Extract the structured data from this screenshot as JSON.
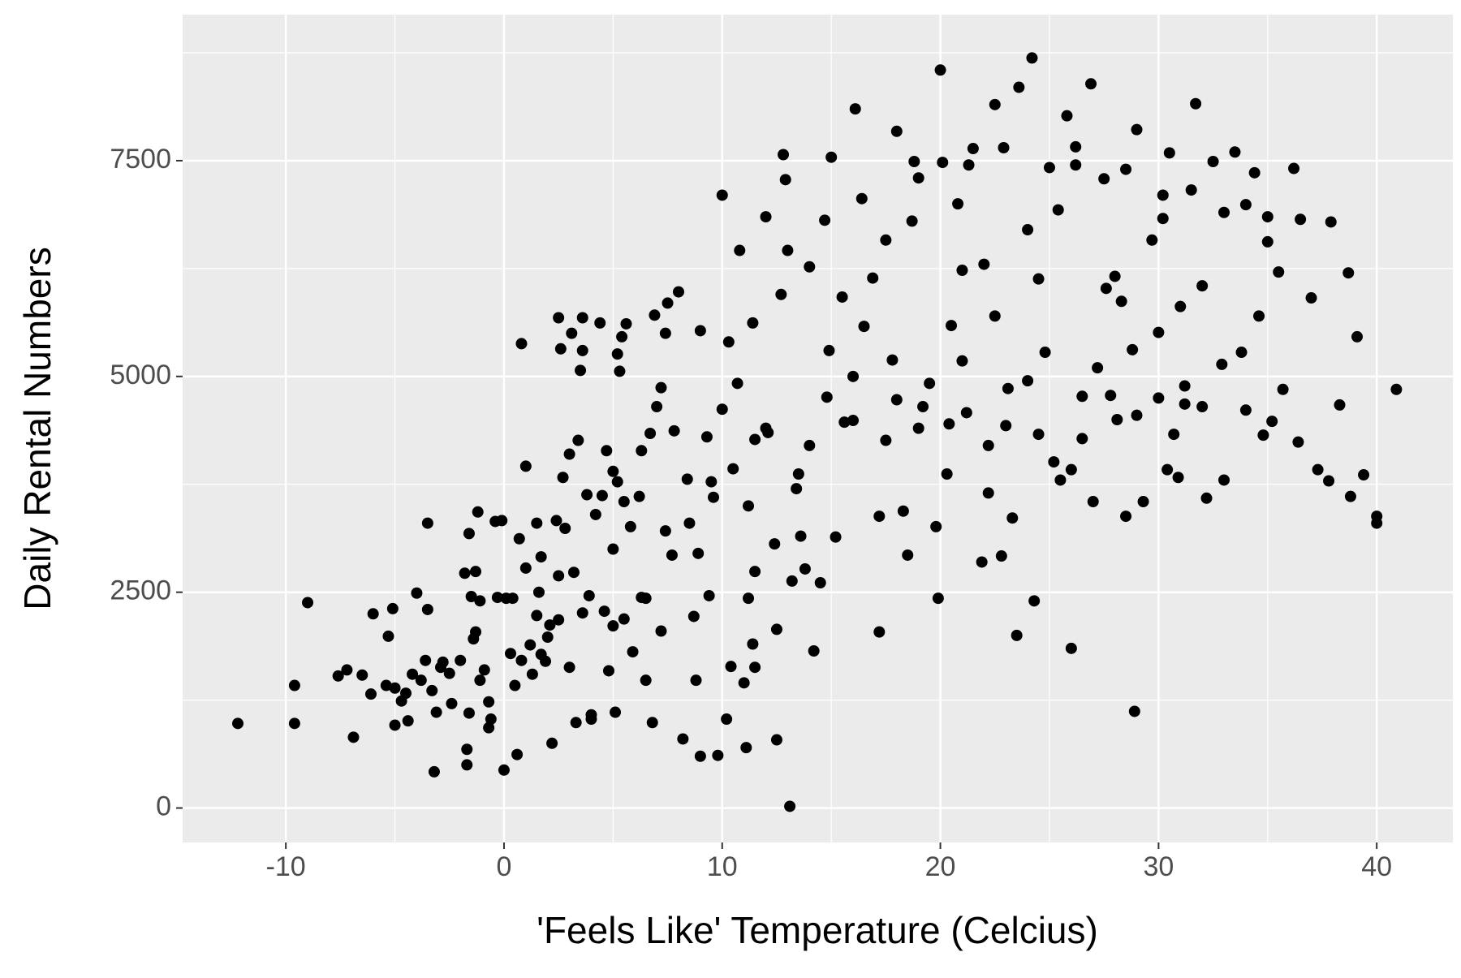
{
  "chart_data": {
    "type": "scatter",
    "x_label": "'Feels Like' Temperature (Celcius)",
    "y_label": "Daily Rental Numbers",
    "color": "#000000",
    "grid": true,
    "xlim": [
      -14.73,
      43.49
    ],
    "ylim": [
      -399,
      9192
    ],
    "xticks": [
      -10,
      0,
      10,
      20,
      30,
      40
    ],
    "yticks": [
      0,
      2500,
      5000,
      7500
    ],
    "x": [
      -12.2,
      -9.6,
      -9.6,
      -9,
      -7.6,
      -7.2,
      -6.9,
      -6.5,
      -6.1,
      -6,
      -5.4,
      -5.3,
      -5.1,
      -5,
      -5,
      -4.7,
      -4.5,
      -4.4,
      -4.2,
      -4,
      -3.8,
      -3.6,
      -3.5,
      -3.5,
      -3.3,
      -3.2,
      -3.1,
      -2.9,
      -2.8,
      -2.5,
      -2.4,
      -2,
      -1.8,
      -1.7,
      -1.7,
      -1.6,
      -1.6,
      -1.5,
      -1.4,
      -1.3,
      -1.3,
      -1.2,
      -1.1,
      -1.1,
      -0.9,
      -0.7,
      -0.7,
      -0.6,
      -0.4,
      -0.3,
      -0.1,
      0,
      0.1,
      0.3,
      0.4,
      0.5,
      0.6,
      0.7,
      0.8,
      0.8,
      1,
      1,
      1.2,
      1.3,
      1.5,
      1.5,
      1.6,
      1.7,
      1.7,
      2,
      2.1,
      2.2,
      2.4,
      2.5,
      2.5,
      2.6,
      2.7,
      2.8,
      3,
      3,
      3.1,
      3.2,
      3.3,
      3.4,
      3.5,
      3.6,
      3.6,
      3.8,
      3.9,
      4,
      4,
      4.2,
      4.4,
      4.5,
      4.7,
      4.8,
      5,
      5,
      5,
      5.1,
      5.2,
      5.2,
      5.3,
      5.4,
      5.5,
      5.5,
      5.6,
      5.8,
      5.9,
      6.2,
      6.3,
      6.5,
      6.5,
      6.7,
      6.8,
      6.9,
      7,
      7.2,
      7.4,
      7.4,
      7.5,
      7.7,
      7.8,
      8,
      8.2,
      8.4,
      8.7,
      8.8,
      8.9,
      9,
      9,
      9.3,
      9.4,
      9.5,
      9.8,
      10,
      10,
      10.2,
      10.3,
      10.4,
      10.7,
      10.8,
      11,
      11.1,
      11.2,
      11.2,
      11.4,
      11.4,
      11.5,
      11.5,
      12,
      12.1,
      12.5,
      12.5,
      12.7,
      12.8,
      12.9,
      13,
      13.1,
      13.2,
      13.5,
      13.8,
      14,
      14.2,
      14.5,
      14.7,
      14.9,
      15,
      15.2,
      15.5,
      16,
      16.1,
      16.4,
      16.9,
      17.2,
      17.2,
      17.5,
      17.8,
      18,
      18.3,
      18.5,
      18.7,
      19,
      19.2,
      19.5,
      19.8,
      19.9,
      20,
      20.1,
      20.3,
      20.5,
      20.8,
      21,
      21.2,
      21.5,
      21.9,
      22,
      22.2,
      22.5,
      22.8,
      23,
      23.3,
      23.5,
      23.6,
      24,
      24.2,
      24.3,
      24.5,
      24.8,
      25.2,
      25.5,
      25.8,
      26,
      26.2,
      26.5,
      26.9,
      27,
      27.2,
      27.6,
      28,
      28.5,
      28.8,
      28.9,
      29,
      29.3,
      29.7,
      30,
      30.2,
      30.5,
      30.7,
      30.9,
      31.2,
      31.5,
      31.7,
      32,
      32.2,
      32.5,
      33,
      33.5,
      34,
      34.4,
      34.8,
      35,
      35.2,
      35.5,
      35.7,
      36.2,
      36.4,
      37,
      37.3,
      37.8,
      37.9,
      38.3,
      38.7,
      38.8,
      39.1,
      39.4,
      40,
      40,
      40.9,
      21,
      22.5,
      24,
      25,
      26.2,
      27.5,
      28.5,
      29,
      30,
      31,
      32,
      33.8,
      34,
      26.5,
      27.8,
      28.1,
      30.4,
      31.2,
      23.1,
      22.2,
      20.4,
      19,
      18,
      17.5,
      16,
      15.6,
      14.8,
      14,
      13.4,
      12.4,
      12,
      11.5,
      10.5,
      9.6,
      8.5,
      7.2,
      6.3,
      4.6,
      3.6,
      2.5,
      1.9,
      13.6,
      16.5,
      18.8,
      21.3,
      22.9,
      25.4,
      30.2,
      33,
      35,
      36.5,
      24.5,
      26,
      28.3,
      32.9,
      34.6
    ],
    "values": [
      980,
      1420,
      980,
      2380,
      1530,
      1600,
      820,
      1540,
      1320,
      2250,
      1420,
      1990,
      2310,
      1390,
      960,
      1240,
      1330,
      1010,
      1550,
      2490,
      1480,
      1710,
      2300,
      3300,
      1360,
      420,
      1110,
      1630,
      1690,
      1560,
      1210,
      1710,
      2720,
      680,
      500,
      3180,
      1100,
      2450,
      1960,
      2740,
      2040,
      3430,
      2400,
      1480,
      1600,
      930,
      1230,
      1030,
      3320,
      2440,
      3330,
      440,
      2430,
      1790,
      2430,
      1420,
      620,
      3120,
      5380,
      1710,
      3960,
      2780,
      1890,
      1550,
      2230,
      3300,
      2500,
      1780,
      2910,
      1980,
      2120,
      750,
      3330,
      2690,
      5680,
      5320,
      3830,
      3240,
      4100,
      1630,
      5500,
      2730,
      990,
      4260,
      5070,
      5680,
      5300,
      3630,
      2460,
      1030,
      1080,
      3400,
      5620,
      3620,
      4140,
      1590,
      2110,
      3000,
      3900,
      1110,
      5260,
      3780,
      5060,
      5460,
      2190,
      3550,
      5610,
      3260,
      1810,
      3610,
      4140,
      1480,
      2430,
      4340,
      990,
      5710,
      4650,
      4870,
      3210,
      5500,
      5850,
      2930,
      4370,
      5980,
      800,
      3810,
      2220,
      1480,
      2950,
      600,
      5530,
      4300,
      2460,
      3780,
      610,
      7100,
      4620,
      1030,
      5400,
      1640,
      4920,
      6460,
      1450,
      700,
      3500,
      2430,
      5620,
      1900,
      2740,
      1630,
      6850,
      4350,
      790,
      2070,
      5950,
      7570,
      7280,
      6460,
      20,
      2630,
      3870,
      2770,
      6270,
      1820,
      2610,
      6810,
      5300,
      7540,
      3140,
      5920,
      4490,
      8100,
      7060,
      6140,
      3380,
      2040,
      6580,
      5190,
      7840,
      3440,
      2930,
      6800,
      7300,
      4650,
      4920,
      3260,
      2430,
      8550,
      7480,
      3870,
      5590,
      7000,
      6230,
      4580,
      7640,
      2850,
      6300,
      3650,
      8150,
      2920,
      4430,
      3360,
      2000,
      8350,
      4950,
      8690,
      2400,
      6130,
      5280,
      4010,
      3800,
      8020,
      1850,
      7660,
      4770,
      8390,
      3550,
      5100,
      6020,
      6160,
      3380,
      5310,
      1120,
      7860,
      3550,
      6580,
      4750,
      6830,
      7590,
      4330,
      3830,
      4890,
      7160,
      8160,
      6050,
      3590,
      7490,
      3800,
      7600,
      4610,
      7360,
      4320,
      6560,
      4480,
      6210,
      4850,
      7410,
      4240,
      5910,
      3920,
      3790,
      6790,
      4670,
      6200,
      3610,
      5460,
      3860,
      3380,
      3300,
      4850,
      5180,
      5700,
      6700,
      7420,
      7450,
      7290,
      7400,
      4550,
      5510,
      5810,
      4650,
      5280,
      6990,
      4280,
      4780,
      4500,
      3920,
      4680,
      4860,
      4200,
      4450,
      4400,
      4730,
      4260,
      5000,
      4470,
      4760,
      4200,
      3700,
      3060,
      4400,
      4270,
      3930,
      3600,
      3300,
      2050,
      2440,
      2280,
      2260,
      2180,
      1700,
      3150,
      5580,
      7490,
      7450,
      7650,
      6930,
      7100,
      6900,
      6850,
      6820,
      4330,
      3920,
      5870,
      5140,
      5700
    ]
  }
}
